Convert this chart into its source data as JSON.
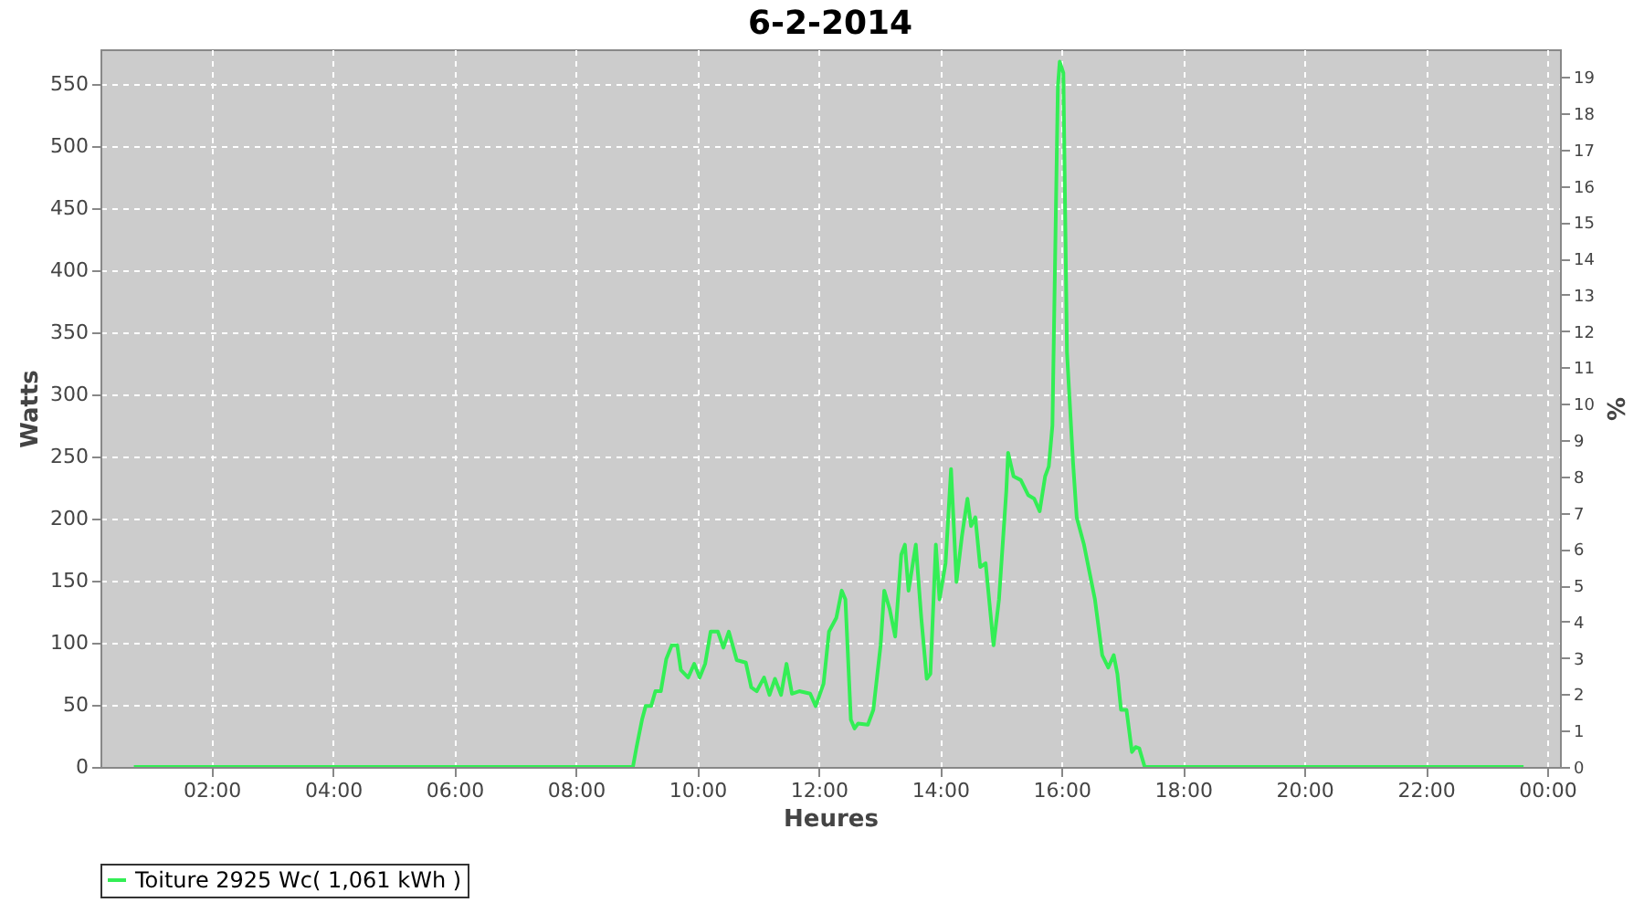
{
  "chart_data": {
    "type": "line",
    "title": "6-2-2014",
    "xlabel": "Heures",
    "ylabel": "Watts",
    "y2label": "%",
    "xlim": [
      0.17,
      24.21
    ],
    "xticks": [
      {
        "value": 2,
        "label": "02:00"
      },
      {
        "value": 4,
        "label": "04:00"
      },
      {
        "value": 6,
        "label": "06:00"
      },
      {
        "value": 8,
        "label": "08:00"
      },
      {
        "value": 10,
        "label": "10:00"
      },
      {
        "value": 12,
        "label": "12:00"
      },
      {
        "value": 14,
        "label": "14:00"
      },
      {
        "value": 16,
        "label": "16:00"
      },
      {
        "value": 18,
        "label": "18:00"
      },
      {
        "value": 20,
        "label": "20:00"
      },
      {
        "value": 22,
        "label": "22:00"
      },
      {
        "value": 24,
        "label": "00:00"
      }
    ],
    "ylim": [
      0,
      578
    ],
    "yticks": [
      0,
      50,
      100,
      150,
      200,
      250,
      300,
      350,
      400,
      450,
      500,
      550
    ],
    "y2lim": [
      0,
      19.76
    ],
    "y2ticks": [
      0,
      1,
      2,
      3,
      4,
      5,
      6,
      7,
      8,
      9,
      10,
      11,
      12,
      13,
      14,
      15,
      16,
      17,
      18,
      19
    ],
    "grid": true,
    "legend": "bottom",
    "marker": "none",
    "line_style": "solid",
    "series": [
      {
        "name": "Toiture 2925 Wc( 1,061 kWh )",
        "color": "#33ee55",
        "x": [
          0.72,
          8.94,
          9.0,
          9.09,
          9.15,
          9.24,
          9.31,
          9.4,
          9.49,
          9.58,
          9.67,
          9.73,
          9.85,
          9.95,
          10.04,
          10.13,
          10.22,
          10.34,
          10.43,
          10.52,
          10.65,
          10.8,
          10.89,
          10.98,
          11.1,
          11.19,
          11.28,
          11.38,
          11.47,
          11.56,
          11.68,
          11.86,
          11.95,
          12.08,
          12.17,
          12.29,
          12.38,
          12.44,
          12.53,
          12.59,
          12.65,
          12.81,
          12.9,
          13.02,
          13.08,
          13.17,
          13.26,
          13.36,
          13.42,
          13.48,
          13.6,
          13.69,
          13.78,
          13.84,
          13.93,
          13.99,
          14.09,
          14.18,
          14.27,
          14.36,
          14.45,
          14.51,
          14.58,
          14.66,
          14.75,
          14.88,
          14.97,
          15.09,
          15.12,
          15.21,
          15.33,
          15.45,
          15.55,
          15.64,
          15.73,
          15.79,
          15.85,
          15.94,
          15.97,
          16.03,
          16.09,
          16.19,
          16.25,
          16.37,
          16.46,
          16.55,
          16.67,
          16.77,
          16.86,
          16.92,
          16.98,
          17.07,
          17.16,
          17.22,
          17.28,
          17.37,
          23.61
        ],
        "values": [
          0,
          0,
          16,
          38,
          49,
          49,
          61,
          61,
          87,
          98,
          98,
          78,
          72,
          83,
          72,
          83,
          109,
          109,
          96,
          109,
          86,
          84,
          64,
          61,
          72,
          58,
          71,
          58,
          83,
          59,
          61,
          59,
          49,
          67,
          109,
          120,
          142,
          135,
          38,
          31,
          35,
          34,
          46,
          98,
          142,
          127,
          105,
          171,
          179,
          142,
          179,
          120,
          71,
          75,
          179,
          135,
          164,
          240,
          149,
          186,
          216,
          194,
          201,
          161,
          164,
          98,
          135,
          222,
          253,
          234,
          231,
          219,
          216,
          206,
          234,
          242,
          275,
          548,
          568,
          559,
          334,
          245,
          201,
          179,
          157,
          135,
          90,
          80,
          90,
          75,
          46,
          46,
          12,
          16,
          15,
          0,
          0
        ]
      }
    ]
  }
}
